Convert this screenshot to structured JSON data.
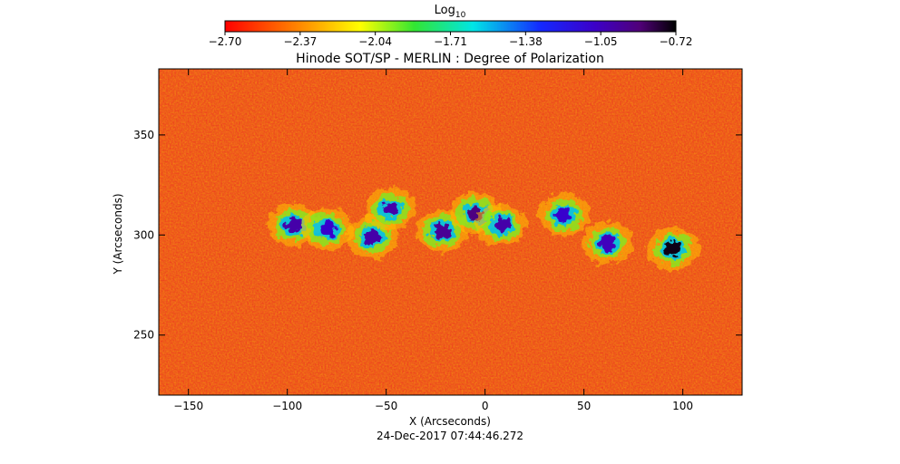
{
  "chart_data": {
    "type": "heatmap",
    "title": "Hinode SOT/SP - MERLIN : Degree of Polarization",
    "xlabel": "X (Arcseconds)",
    "ylabel": "Y (Arcseconds)",
    "xlim": [
      -165,
      130
    ],
    "ylim": [
      220,
      383
    ],
    "x_ticks": [
      -150,
      -100,
      -50,
      0,
      50,
      100
    ],
    "y_ticks": [
      250,
      300,
      350
    ],
    "x_tick_labels": [
      "−150",
      "−100",
      "−50",
      "0",
      "50",
      "100"
    ],
    "y_tick_labels": [
      "250",
      "300",
      "350"
    ],
    "colorbar": {
      "label_base": "Log",
      "label_sub": "10",
      "range": [
        -2.7,
        -0.72
      ],
      "ticks": [
        -2.7,
        -2.37,
        -2.04,
        -1.71,
        -1.38,
        -1.05,
        -0.72
      ],
      "tick_labels": [
        "−2.70",
        "−2.37",
        "−2.04",
        "−1.71",
        "−1.38",
        "−1.05",
        "−0.72"
      ],
      "colormap": "rainbow (red → yellow → green → cyan → blue → purple → black)"
    },
    "grid": false,
    "features": [
      {
        "x": -97,
        "y": 305,
        "value": -1.0
      },
      {
        "x": -80,
        "y": 303,
        "value": -1.1
      },
      {
        "x": -57,
        "y": 299,
        "value": -1.0
      },
      {
        "x": -48,
        "y": 313,
        "value": -1.0
      },
      {
        "x": -22,
        "y": 302,
        "value": -0.95
      },
      {
        "x": -5,
        "y": 311,
        "value": -0.9
      },
      {
        "x": 8,
        "y": 305,
        "value": -1.0
      },
      {
        "x": 40,
        "y": 310,
        "value": -1.1
      },
      {
        "x": 62,
        "y": 296,
        "value": -1.05
      },
      {
        "x": 95,
        "y": 293,
        "value": -0.75
      }
    ],
    "background_value": -2.55
  },
  "timestamp": "24-Dec-2017 07:44:46.272",
  "colors": {
    "axis": "#000000",
    "background": "#ffffff",
    "map_base": "#f0321e"
  }
}
